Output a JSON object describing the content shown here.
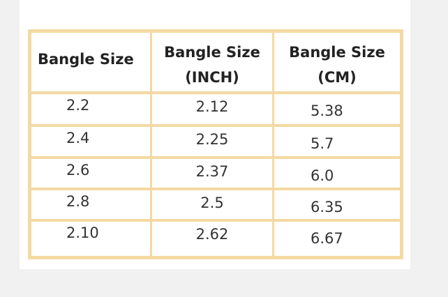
{
  "table": {
    "header": [
      [
        "Bangle Size"
      ],
      [
        "Bangle Size",
        "(INCH)"
      ],
      [
        "Bangle Size",
        "(CM)"
      ]
    ],
    "rows": [
      [
        "2.2",
        "2.12",
        "5.38"
      ],
      [
        "2.4",
        "2.25",
        "5.7"
      ],
      [
        "2.6",
        "2.37",
        "6.0"
      ],
      [
        "2.8",
        "2.5",
        "6.35"
      ],
      [
        "2.10",
        "2.62",
        "6.67"
      ]
    ]
  }
}
